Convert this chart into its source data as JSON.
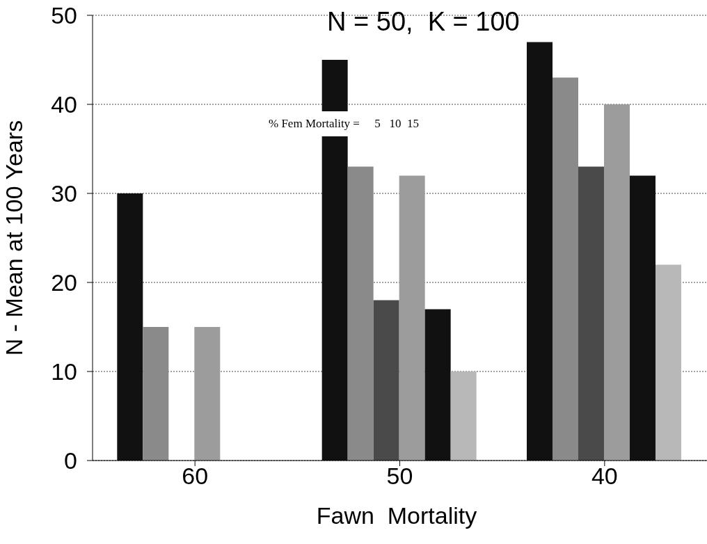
{
  "chart_data": {
    "type": "bar",
    "title": "N = 50,  K = 100",
    "xlabel": "Fawn  Mortality",
    "ylabel": "N - Mean at 100 Years",
    "annotations": [
      "% Fem Mortality =     5   10  15"
    ],
    "categories": [
      "60",
      "50",
      "40"
    ],
    "series": [
      {
        "color": "#111111",
        "values": [
          30,
          45,
          47
        ]
      },
      {
        "color": "#8a8a8a",
        "values": [
          15,
          33,
          43
        ]
      },
      {
        "color": "#4a4a4a",
        "values": [
          null,
          18,
          33
        ]
      },
      {
        "color": "#9c9c9c",
        "values": [
          15,
          32,
          40
        ]
      },
      {
        "color": "#111111",
        "values": [
          null,
          17,
          32
        ]
      },
      {
        "color": "#b8b8b8",
        "values": [
          null,
          10,
          22
        ]
      }
    ],
    "ylim": [
      0,
      50
    ],
    "yticks": [
      0,
      10,
      20,
      30,
      40,
      50
    ],
    "grid": "y"
  }
}
